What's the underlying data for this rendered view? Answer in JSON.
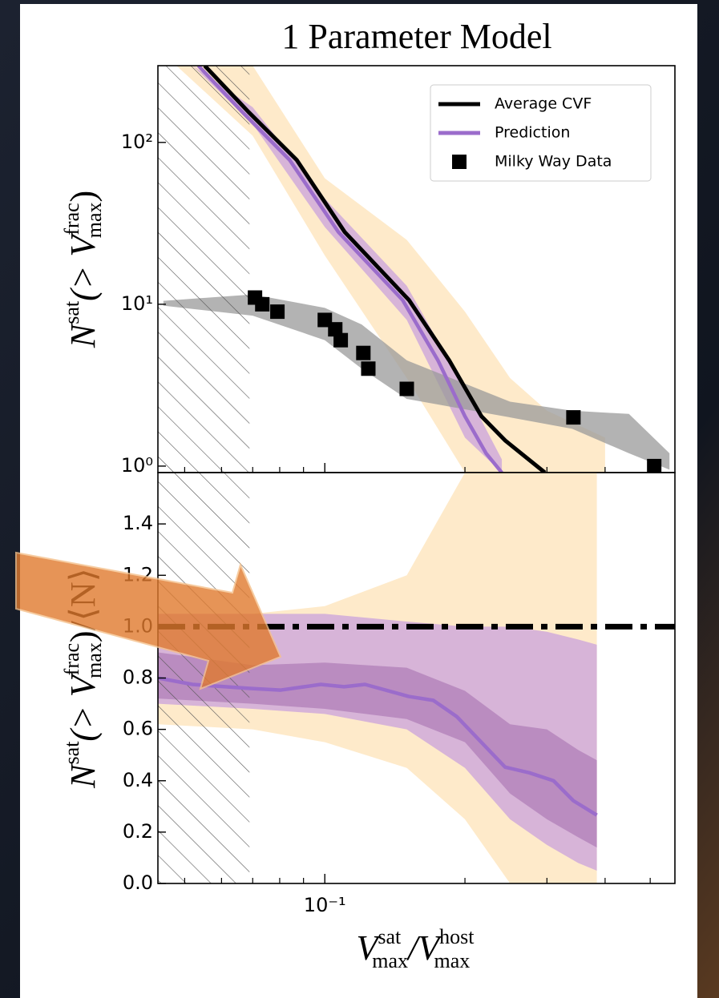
{
  "chart_data": [
    {
      "type": "line",
      "title": "1 Parameter Model",
      "ylabel": {
        "main": "N",
        "sup": "sat",
        "open": "(> V",
        "sup2": "frac",
        "sub2": "max",
        "close": ")"
      },
      "xscale": "log",
      "yscale": "log",
      "xlim": [
        0.0438,
        0.565
      ],
      "ylim": [
        0.912,
        298
      ],
      "xticks": [
        {
          "value": 0.1,
          "label": "10⁻¹"
        }
      ],
      "xminorticks": [
        0.05,
        0.06,
        0.07,
        0.08,
        0.09,
        0.2,
        0.3,
        0.4,
        0.5
      ],
      "yticks": [
        {
          "value": 1,
          "label": "10⁰"
        },
        {
          "value": 10,
          "label": "10¹"
        },
        {
          "value": 100,
          "label": "10²"
        }
      ],
      "hatch_xmax": 0.0689,
      "legend": "upper right",
      "bands": [
        {
          "color": "#fde3b8",
          "x": [
            0.048,
            0.07,
            0.1,
            0.15,
            0.2,
            0.25,
            0.3,
            0.4
          ],
          "upper": [
            298,
            298,
            60,
            25,
            9,
            3.5,
            2.2,
            1.5
          ],
          "lower": [
            298,
            110,
            20,
            3.5,
            0.912,
            0.912,
            0.912,
            0.912
          ]
        },
        {
          "color": "#c9a2dc",
          "x": [
            0.052,
            0.07,
            0.1,
            0.15,
            0.2,
            0.24
          ],
          "upper": [
            298,
            165,
            45,
            13,
            3.0,
            1.1
          ],
          "lower": [
            298,
            130,
            30,
            8,
            1.5,
            0.912
          ]
        },
        {
          "color": "#9a9a9a",
          "x": [
            0.045,
            0.07,
            0.1,
            0.12,
            0.15,
            0.25,
            0.34,
            0.45,
            0.55
          ],
          "upper": [
            10.5,
            11.5,
            9.5,
            7.5,
            4.5,
            2.5,
            2.2,
            2.1,
            1.2
          ],
          "lower": [
            9.8,
            8.5,
            6,
            4,
            2.6,
            2.0,
            1.7,
            1.2,
            0.95
          ]
        }
      ],
      "series": [
        {
          "name": "Average CVF",
          "style": "line",
          "color": "#000000",
          "x": [
            0.0552,
            0.0686,
            0.087,
            0.1104,
            0.1517,
            0.185,
            0.217,
            0.244,
            0.297
          ],
          "values": [
            298,
            154,
            78,
            27.9,
            10.6,
            4.5,
            2.03,
            1.44,
            0.912
          ]
        },
        {
          "name": "Prediction",
          "style": "line",
          "color": "#9b6ccb",
          "x": [
            0.0535,
            0.0665,
            0.084,
            0.107,
            0.147,
            0.175,
            0.2,
            0.222,
            0.24
          ],
          "values": [
            298,
            154,
            78,
            27.9,
            10.6,
            4.5,
            2.03,
            1.2,
            0.912
          ]
        },
        {
          "name": "Milky Way Data",
          "style": "marker",
          "color": "#000000",
          "x": [
            0.0708,
            0.0734,
            0.0791,
            0.1,
            0.1053,
            0.1082,
            0.121,
            0.124,
            0.15,
            0.342,
            0.51
          ],
          "values": [
            11,
            10,
            9,
            8,
            7,
            6,
            5,
            4,
            3,
            2,
            1
          ]
        }
      ]
    },
    {
      "type": "line",
      "ylabel": {
        "main": "N",
        "sup": "sat",
        "open": "(> V",
        "sup2": "frac",
        "sub2": "max",
        "close": ")/⟨N⟩"
      },
      "xlabel": {
        "v1": "V",
        "sup1": "sat",
        "sub1": "max",
        "slash": "/V",
        "sup2": "host",
        "sub2": "max"
      },
      "xscale": "log",
      "xlim": [
        0.0438,
        0.565
      ],
      "ylim": [
        0,
        1.6
      ],
      "xticks": [
        {
          "value": 0.1,
          "label": "10⁻¹"
        }
      ],
      "xminorticks": [
        0.05,
        0.06,
        0.07,
        0.08,
        0.09,
        0.2,
        0.3,
        0.4,
        0.5
      ],
      "yticks": [
        {
          "value": 0,
          "label": "0.0"
        },
        0.2,
        0.4,
        0.6,
        0.8,
        {
          "value": 1,
          "label": "1.0"
        },
        1.2,
        1.4
      ],
      "hatch_xmax": 0.0689,
      "reference_line": {
        "value": 1,
        "color": "#000000"
      },
      "bands": [
        {
          "color": "#fde3b8",
          "x": [
            0.0438,
            0.07,
            0.1,
            0.15,
            0.2,
            0.25,
            0.3,
            0.35,
            0.384
          ],
          "upper": [
            1.05,
            1.05,
            1.08,
            1.2,
            1.6,
            1.6,
            1.6,
            1.6,
            1.6
          ],
          "lower": [
            0.62,
            0.6,
            0.55,
            0.45,
            0.25,
            0,
            0,
            0,
            0
          ]
        },
        {
          "color": "#c9a2dc",
          "x": [
            0.0438,
            0.07,
            0.1,
            0.15,
            0.2,
            0.25,
            0.3,
            0.35,
            0.384
          ],
          "upper": [
            1.05,
            1.05,
            1.05,
            1.02,
            1.0,
            1.0,
            0.98,
            0.95,
            0.93
          ],
          "lower": [
            0.7,
            0.68,
            0.66,
            0.6,
            0.45,
            0.25,
            0.15,
            0.08,
            0.05
          ]
        },
        {
          "color": "#b07fb8",
          "x": [
            0.0438,
            0.07,
            0.1,
            0.15,
            0.2,
            0.25,
            0.3,
            0.35,
            0.384
          ],
          "upper": [
            0.9,
            0.85,
            0.86,
            0.84,
            0.75,
            0.62,
            0.6,
            0.52,
            0.48
          ],
          "lower": [
            0.72,
            0.7,
            0.68,
            0.64,
            0.55,
            0.35,
            0.25,
            0.18,
            0.14
          ]
        }
      ],
      "series": [
        {
          "style": "line",
          "color": "#9b6ccb",
          "x": [
            0.0438,
            0.052,
            0.0686,
            0.0804,
            0.098,
            0.11,
            0.122,
            0.1516,
            0.171,
            0.192,
            0.244,
            0.275,
            0.31,
            0.342,
            0.384
          ],
          "values": [
            0.8,
            0.775,
            0.76,
            0.753,
            0.775,
            0.766,
            0.775,
            0.728,
            0.713,
            0.65,
            0.453,
            0.431,
            0.4,
            0.322,
            0.266
          ]
        }
      ]
    }
  ]
}
